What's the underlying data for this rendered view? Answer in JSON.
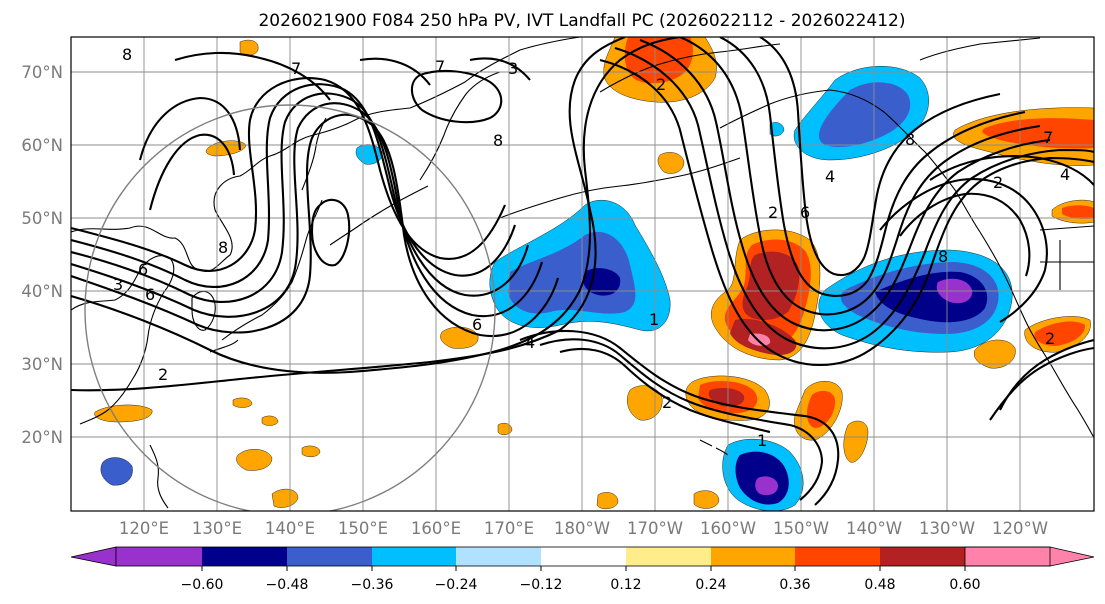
{
  "title": "2026021900 F084 250 hPa PV, IVT Landfall PC (2026022112 - 2026022412)",
  "lat_labels": [
    "70°N",
    "60°N",
    "50°N",
    "40°N",
    "30°N",
    "20°N"
  ],
  "lon_labels": [
    "120°E",
    "130°E",
    "140°E",
    "150°E",
    "160°E",
    "170°E",
    "180°W",
    "170°W",
    "160°W",
    "150°W",
    "140°W",
    "130°W",
    "120°W"
  ],
  "colorbar": {
    "tick_labels": [
      "−0.60",
      "−0.48",
      "−0.36",
      "−0.24",
      "−0.12",
      "0.12",
      "0.24",
      "0.36",
      "0.48",
      "0.60"
    ],
    "colors": [
      "#9932cc",
      "#00008b",
      "#3a5fcd",
      "#00bfff",
      "#b0e2ff",
      "#ffffff",
      "#ffec8b",
      "#ffa500",
      "#ff4500",
      "#b22222",
      "#ff82ab"
    ]
  },
  "contour_labels": [
    "8",
    "7",
    "7",
    "2",
    "8",
    "8",
    "2",
    "2",
    "4",
    "7",
    "6",
    "3",
    "6",
    "2",
    "8",
    "6",
    "4",
    "1",
    "2",
    "6",
    "8",
    "4",
    "2",
    "1",
    "3"
  ]
}
